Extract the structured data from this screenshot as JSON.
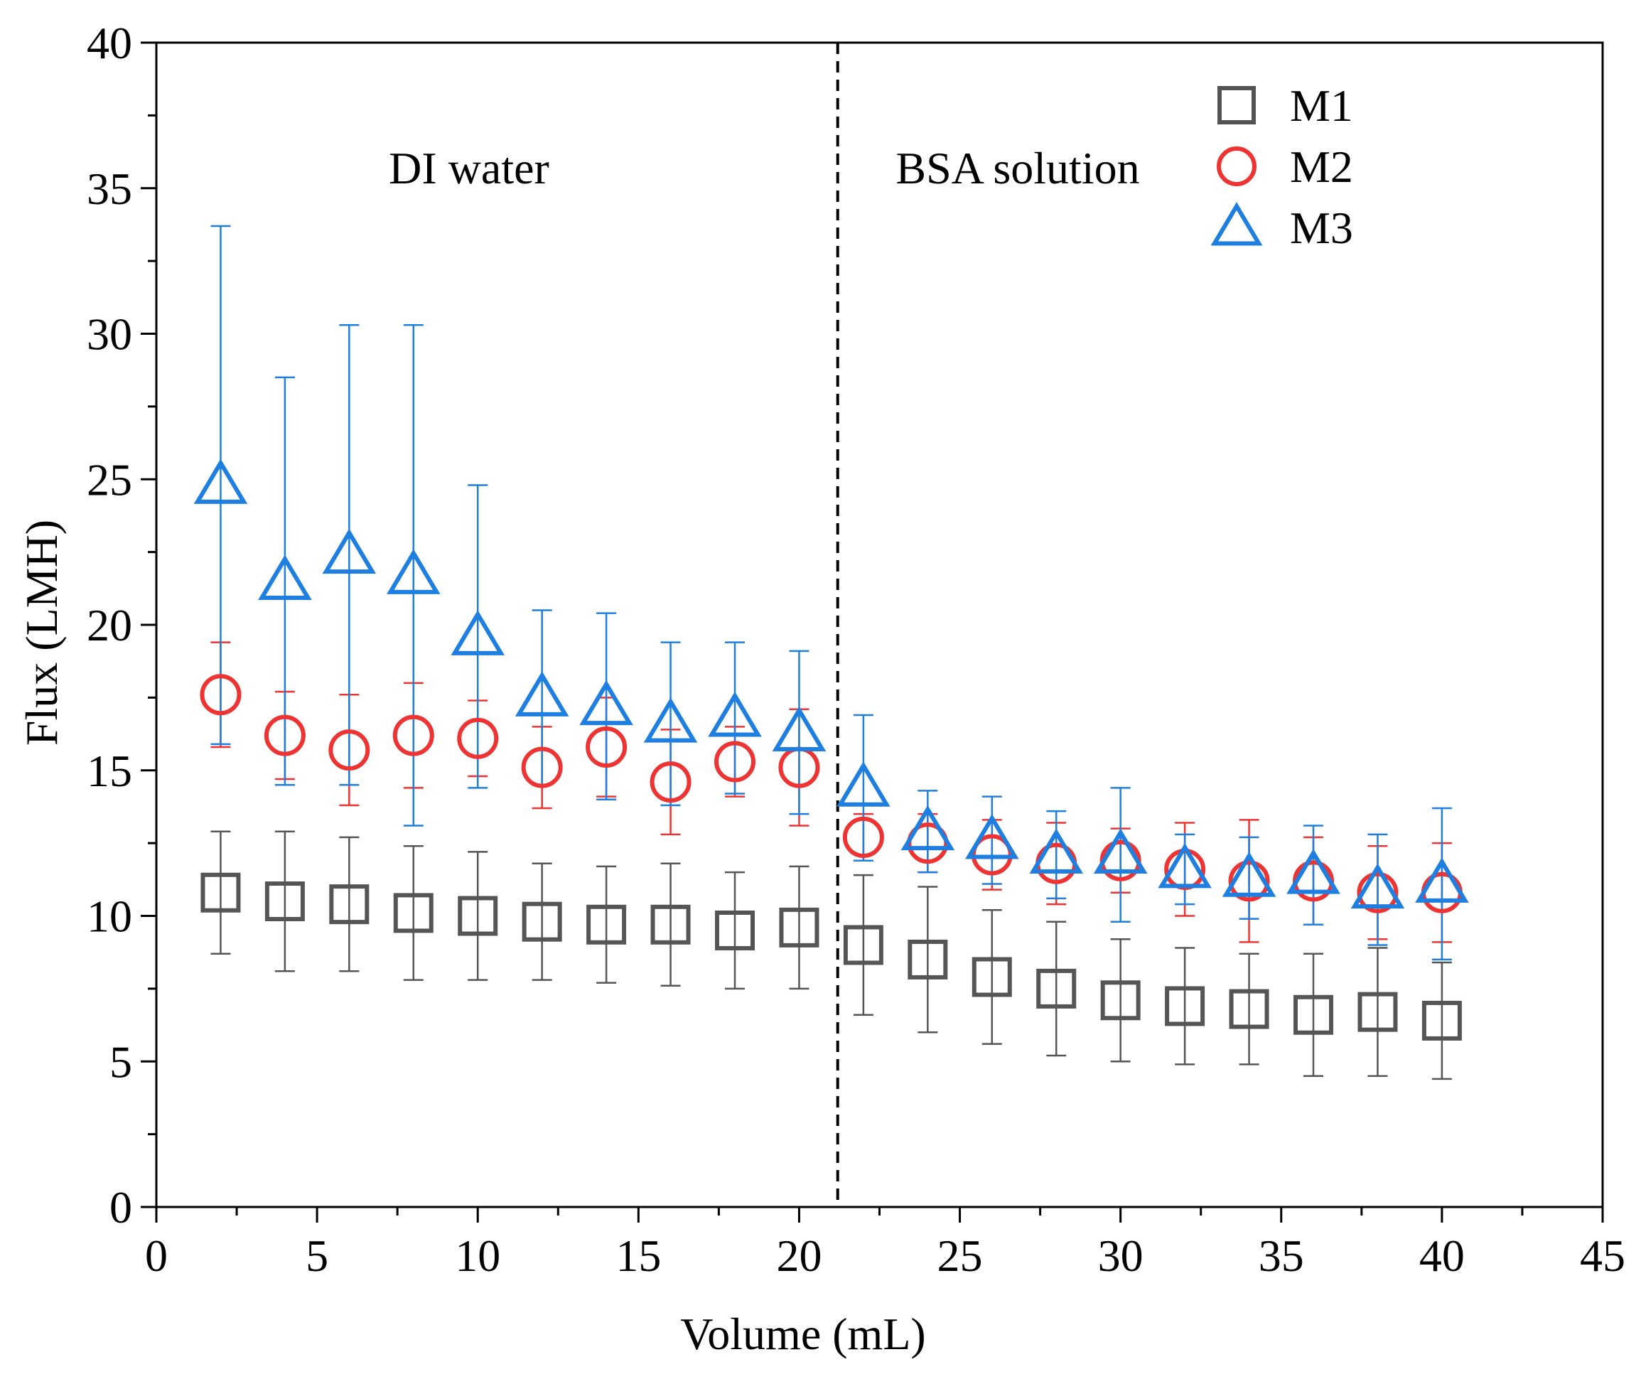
{
  "chart_data": {
    "type": "scatter",
    "xlabel": "Volume (mL)",
    "ylabel": "Flux (LMH)",
    "xlim": [
      0,
      45
    ],
    "ylim": [
      0,
      40
    ],
    "xticks": [
      0,
      5,
      10,
      15,
      20,
      25,
      30,
      35,
      40,
      45
    ],
    "yticks": [
      0,
      5,
      10,
      15,
      20,
      25,
      30,
      35,
      40
    ],
    "x_tick_labels": [
      "0",
      "5",
      "10",
      "15",
      "20",
      "25",
      "30",
      "35",
      "40",
      "45"
    ],
    "y_tick_labels": [
      "0",
      "5",
      "10",
      "15",
      "20",
      "25",
      "30",
      "35",
      "40"
    ],
    "grid": false,
    "legend_position": "top-right",
    "divider_x": 21.2,
    "annotations": [
      "DI water",
      "BSA solution"
    ],
    "series": [
      {
        "name": "M1",
        "marker": "square",
        "color": "#555555",
        "x": [
          2,
          4,
          6,
          8,
          10,
          12,
          14,
          16,
          18,
          20,
          22,
          24,
          26,
          28,
          30,
          32,
          34,
          36,
          38,
          40
        ],
        "y": [
          10.8,
          10.5,
          10.4,
          10.1,
          10.0,
          9.8,
          9.7,
          9.7,
          9.5,
          9.6,
          9.0,
          8.5,
          7.9,
          7.5,
          7.1,
          6.9,
          6.8,
          6.6,
          6.7,
          6.4
        ],
        "err": [
          2.1,
          2.4,
          2.3,
          2.3,
          2.2,
          2.0,
          2.0,
          2.1,
          2.0,
          2.1,
          2.4,
          2.5,
          2.3,
          2.3,
          2.1,
          2.0,
          1.9,
          2.1,
          2.2,
          2.0
        ]
      },
      {
        "name": "M2",
        "marker": "circle",
        "color": "#ee3333",
        "x": [
          2,
          4,
          6,
          8,
          10,
          12,
          14,
          16,
          18,
          20,
          22,
          24,
          26,
          28,
          30,
          32,
          34,
          36,
          38,
          40
        ],
        "y": [
          17.6,
          16.2,
          15.7,
          16.2,
          16.1,
          15.1,
          15.8,
          14.6,
          15.3,
          15.1,
          12.7,
          12.5,
          12.1,
          11.8,
          11.9,
          11.6,
          11.2,
          11.2,
          10.8,
          10.8
        ],
        "err": [
          1.8,
          1.5,
          1.9,
          1.8,
          1.3,
          1.4,
          1.7,
          1.8,
          1.2,
          2.0,
          0.8,
          1.0,
          1.2,
          1.4,
          1.1,
          1.6,
          2.1,
          1.5,
          1.6,
          1.7
        ]
      },
      {
        "name": "M3",
        "marker": "triangle",
        "color": "#1e7fe0",
        "x": [
          2,
          4,
          6,
          8,
          10,
          12,
          14,
          16,
          18,
          20,
          22,
          24,
          26,
          28,
          30,
          32,
          34,
          36,
          38,
          40
        ],
        "y": [
          24.8,
          21.5,
          22.4,
          21.7,
          19.6,
          17.5,
          17.2,
          16.6,
          16.8,
          16.3,
          14.4,
          12.9,
          12.6,
          12.1,
          12.1,
          11.6,
          11.3,
          11.4,
          10.9,
          11.1
        ],
        "err": [
          8.9,
          7.0,
          7.9,
          8.6,
          5.2,
          3.0,
          3.2,
          2.8,
          2.6,
          2.8,
          2.5,
          1.4,
          1.5,
          1.5,
          2.3,
          1.2,
          1.4,
          1.7,
          1.9,
          2.6
        ]
      }
    ]
  }
}
